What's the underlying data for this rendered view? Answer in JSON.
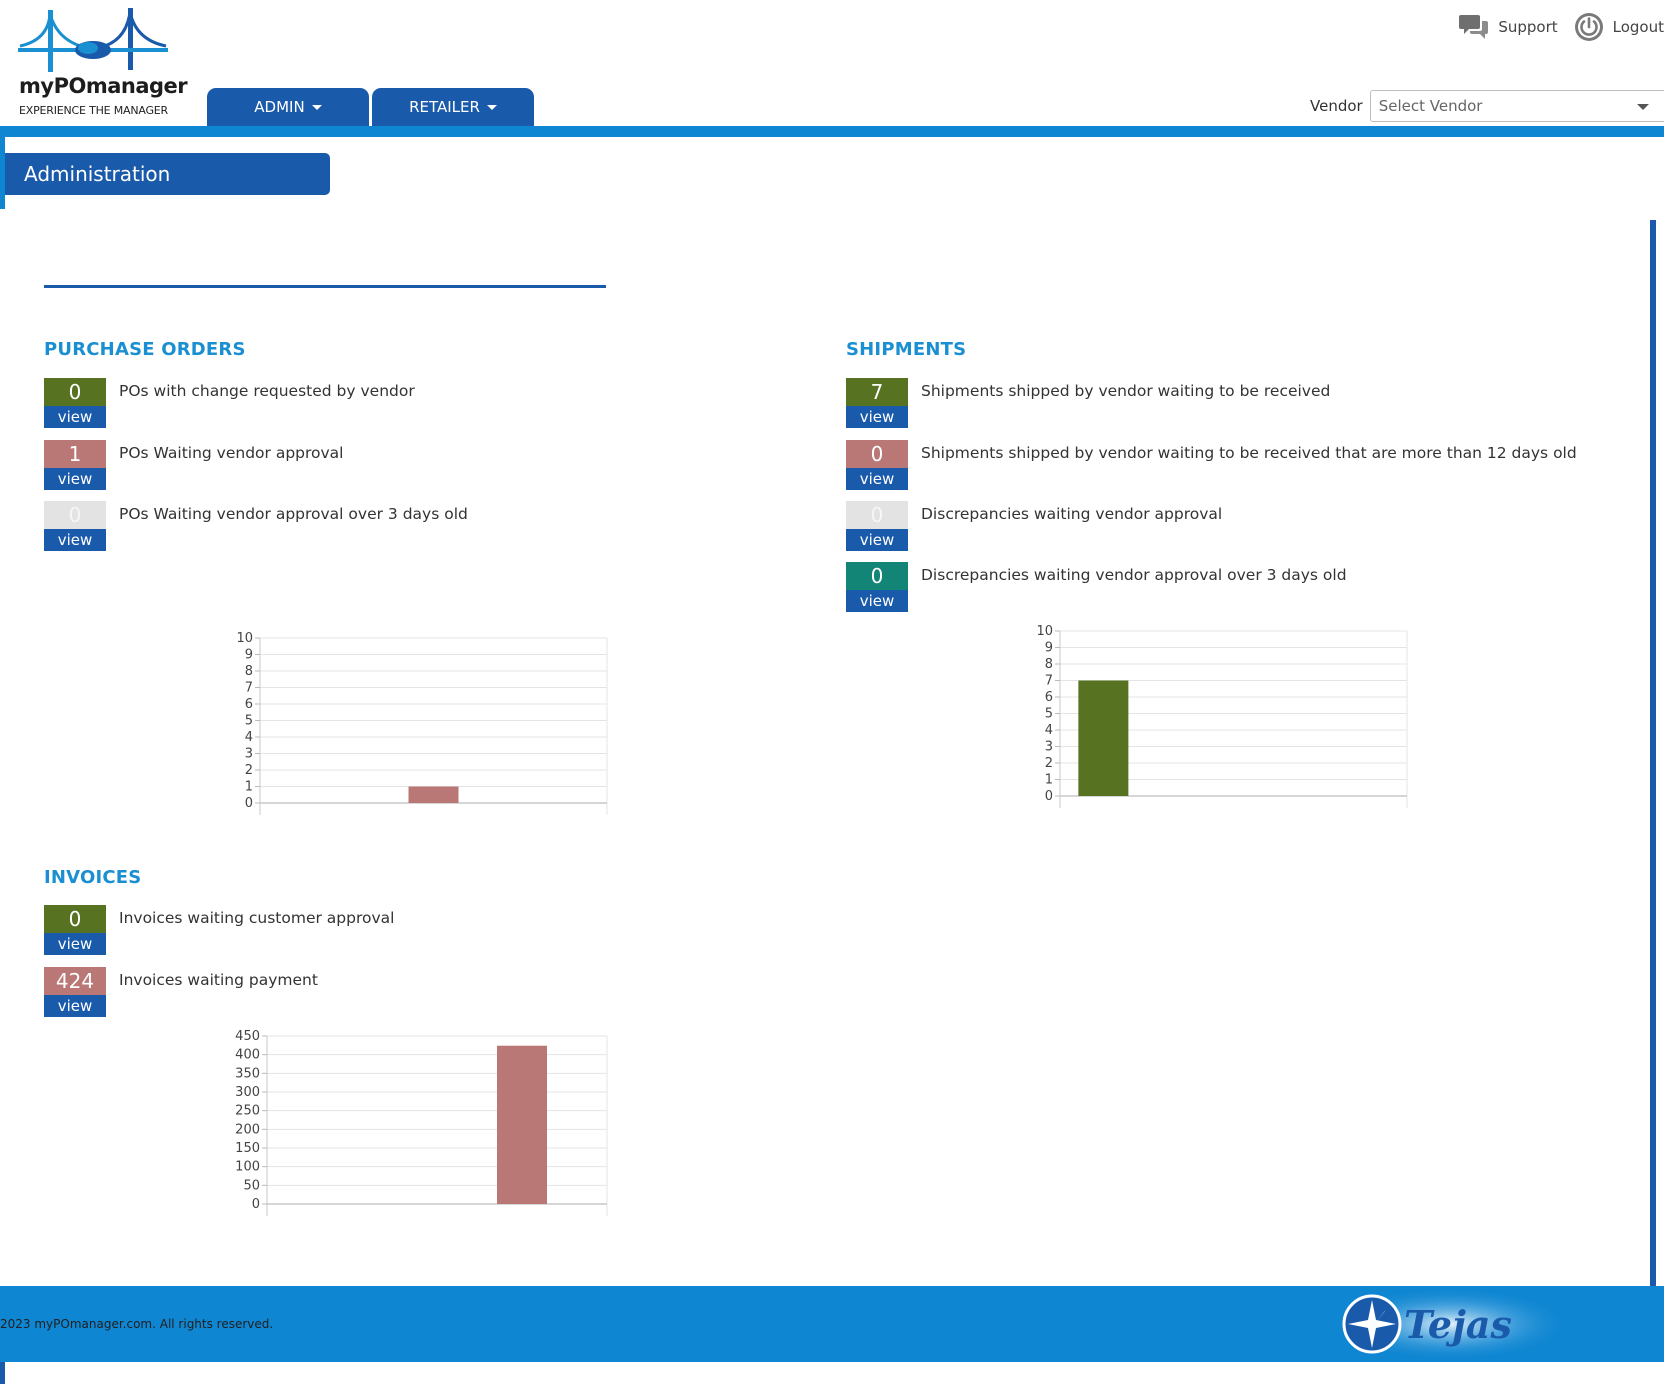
{
  "header": {
    "brand_name": "myPOmanager",
    "tagline": "EXPERIENCE THE MANAGER",
    "nav_tabs": [
      {
        "label": "ADMIN"
      },
      {
        "label": "RETAILER"
      }
    ],
    "links": {
      "support": "Support",
      "logout": "Logout"
    },
    "vendor": {
      "label": "Vendor",
      "placeholder": "Select Vendor"
    }
  },
  "page": {
    "title": "Administration"
  },
  "purchase_orders": {
    "title": "PURCHASE ORDERS",
    "items": [
      {
        "count": "0",
        "view": "view",
        "label": "POs with change requested by vendor"
      },
      {
        "count": "1",
        "view": "view",
        "label": "POs Waiting vendor approval"
      },
      {
        "count": "0",
        "view": "view",
        "label": "POs Waiting vendor approval over 3 days old"
      }
    ]
  },
  "shipments": {
    "title": "SHIPMENTS",
    "items": [
      {
        "count": "7",
        "view": "view",
        "label": "Shipments shipped by vendor waiting to be received"
      },
      {
        "count": "0",
        "view": "view",
        "label": "Shipments shipped by vendor waiting to be received that are more than 12 days old"
      },
      {
        "count": "0",
        "view": "view",
        "label": "Discrepancies waiting vendor approval"
      },
      {
        "count": "0",
        "view": "view",
        "label": "Discrepancies waiting vendor approval over 3 days old"
      }
    ]
  },
  "invoices": {
    "title": "INVOICES",
    "items": [
      {
        "count": "0",
        "view": "view",
        "label": "Invoices waiting customer approval"
      },
      {
        "count": "424",
        "view": "view",
        "label": "Invoices waiting payment"
      }
    ]
  },
  "colors": {
    "brand_blue": "#1a5aab",
    "accent_blue": "#0f86d2",
    "green": "#577220",
    "rose": "#b97876",
    "light_gray": "#e3e3e3",
    "teal": "#128576"
  },
  "chart_data": [
    {
      "type": "bar",
      "categories": [
        "",
        "",
        ""
      ],
      "values": [
        0,
        1,
        0
      ],
      "colors": [
        "#577220",
        "#b97876",
        "#e3e3e3"
      ],
      "ylim": [
        0,
        10
      ],
      "yticks": [
        0,
        1,
        2,
        3,
        4,
        5,
        6,
        7,
        8,
        9,
        10
      ],
      "grid": true
    },
    {
      "type": "bar",
      "categories": [
        "",
        "",
        "",
        ""
      ],
      "values": [
        7,
        0,
        0,
        0
      ],
      "colors": [
        "#577220",
        "#b97876",
        "#e3e3e3",
        "#128576"
      ],
      "ylim": [
        0,
        10
      ],
      "yticks": [
        0,
        1,
        2,
        3,
        4,
        5,
        6,
        7,
        8,
        9,
        10
      ],
      "grid": true
    },
    {
      "type": "bar",
      "categories": [
        "",
        ""
      ],
      "values": [
        0,
        424
      ],
      "colors": [
        "#577220",
        "#b97876"
      ],
      "ylim": [
        0,
        450
      ],
      "yticks": [
        0,
        50,
        100,
        150,
        200,
        250,
        300,
        350,
        400,
        450
      ],
      "grid": true
    }
  ],
  "footer": {
    "copyright": "2023 myPOmanager.com. All rights reserved.",
    "partner_logo_text": "Tejas"
  }
}
